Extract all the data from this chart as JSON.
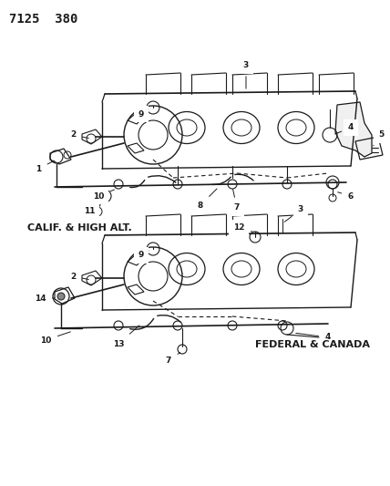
{
  "title": "7125  380",
  "bg": "#ffffff",
  "lc": "#1a1a1a",
  "label1": "CALIF. & HIGH ALT.",
  "label2": "FEDERAL & CANADA",
  "fig_w": 4.28,
  "fig_h": 5.33,
  "dpi": 100
}
